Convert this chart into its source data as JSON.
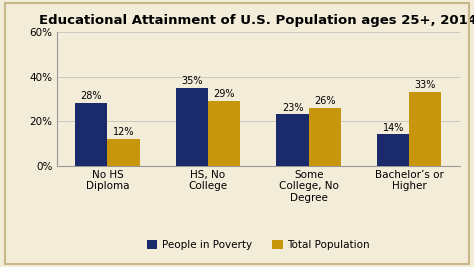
{
  "title": "Educational Attainment of U.S. Population ages 25+, 2014",
  "categories": [
    "No HS\nDiploma",
    "HS, No\nCollege",
    "Some\nCollege, No\nDegree",
    "Bachelor’s or\nHigher"
  ],
  "poverty_values": [
    28,
    35,
    23,
    14
  ],
  "total_values": [
    12,
    29,
    26,
    33
  ],
  "poverty_color": "#1B2A6B",
  "total_color": "#C8960C",
  "ylim": [
    0,
    60
  ],
  "yticks": [
    0,
    20,
    40,
    60
  ],
  "ytick_labels": [
    "0%",
    "20%",
    "40%",
    "60%"
  ],
  "legend_labels": [
    "People in Poverty",
    "Total Population"
  ],
  "bar_width": 0.32,
  "title_fontsize": 9.5,
  "tick_fontsize": 7.5,
  "value_fontsize": 7,
  "legend_fontsize": 7.5,
  "background_color": "#F2ECD8",
  "border_color": "#C8B88A",
  "spine_color": "#999999"
}
